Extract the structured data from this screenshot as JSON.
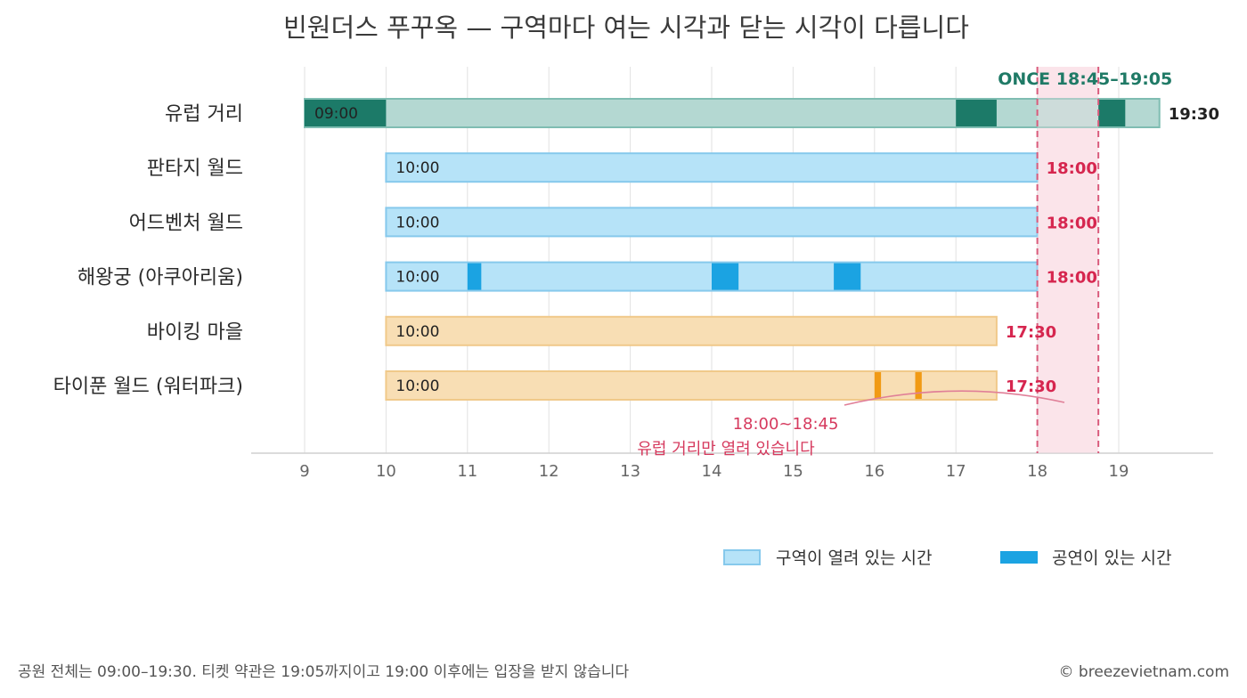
{
  "chart_data": {
    "type": "bar",
    "title": "빈원더스 푸꾸옥 — 구역마다 여는 시각과 닫는 시각이 다릅니다",
    "xlim": [
      9,
      19
    ],
    "x_ticks": [
      "9",
      "10",
      "11",
      "12",
      "13",
      "14",
      "15",
      "16",
      "17",
      "18",
      "19"
    ],
    "zones": [
      {
        "name": "유럽 거리",
        "open": 9.0,
        "close": 19.5,
        "open_label": "09:00",
        "close_label": "19:30",
        "color": "#b4d8d2",
        "border": "#7fbdb2",
        "show_color": "#1c7a68",
        "close_color": "#222222",
        "shows": [
          [
            9.0,
            10.0
          ],
          [
            17.0,
            17.5
          ],
          [
            18.75,
            19.08
          ]
        ]
      },
      {
        "name": "판타지 월드",
        "open": 10.0,
        "close": 18.0,
        "open_label": "10:00",
        "close_label": "18:00",
        "color": "#b6e3f8",
        "border": "#86c9ec",
        "show_color": "#1ba3e2",
        "close_color": "#d6264f",
        "shows": []
      },
      {
        "name": "어드벤처 월드",
        "open": 10.0,
        "close": 18.0,
        "open_label": "10:00",
        "close_label": "18:00",
        "color": "#b6e3f8",
        "border": "#86c9ec",
        "show_color": "#1ba3e2",
        "close_color": "#d6264f",
        "shows": []
      },
      {
        "name": "해왕궁 (아쿠아리움)",
        "open": 10.0,
        "close": 18.0,
        "open_label": "10:00",
        "close_label": "18:00",
        "color": "#b6e3f8",
        "border": "#86c9ec",
        "show_color": "#1ba3e2",
        "close_color": "#d6264f",
        "shows": [
          [
            11.0,
            11.17
          ],
          [
            14.0,
            14.33
          ],
          [
            15.5,
            15.83
          ]
        ]
      },
      {
        "name": "바이킹 마을",
        "open": 10.0,
        "close": 17.5,
        "open_label": "10:00",
        "close_label": "17:30",
        "color": "#f8deb4",
        "border": "#f0c98a",
        "show_color": "#f19a14",
        "close_color": "#d6264f",
        "shows": []
      },
      {
        "name": "타이푼 월드 (워터파크)",
        "open": 10.0,
        "close": 17.5,
        "open_label": "10:00",
        "close_label": "17:30",
        "color": "#f8deb4",
        "border": "#f0c98a",
        "show_color": "#f19a14",
        "close_color": "#d6264f",
        "shows": [
          [
            16.0,
            16.08
          ],
          [
            16.5,
            16.58
          ]
        ]
      }
    ],
    "once_window": {
      "start": 18.75,
      "end": 19.08,
      "label": "ONCE 18:45–19:05",
      "color": "#1f7a66"
    },
    "highlight_window": {
      "start": 18.0,
      "end": 18.75,
      "color": "#fbe4ea",
      "line_color": "#d95b7c"
    },
    "annotation": {
      "line1": "18:00~18:45",
      "line2": "유럽 거리만 열려 있습니다",
      "color": "#d63a5e"
    },
    "legend": {
      "placement": "bottom-right",
      "items": [
        {
          "label": "구역이 열려 있는 시간",
          "color": "#b6e3f8",
          "border": "#86c9ec"
        },
        {
          "label": "공연이 있는 시간",
          "color": "#1ba3e2",
          "border": "#1ba3e2"
        }
      ]
    },
    "grid": true
  },
  "footer": {
    "note": "공원 전체는 09:00–19:30. 티켓 약관은 19:05까지이고 19:00 이후에는 입장을 받지 않습니다",
    "credit": "© breezevietnam.com"
  }
}
